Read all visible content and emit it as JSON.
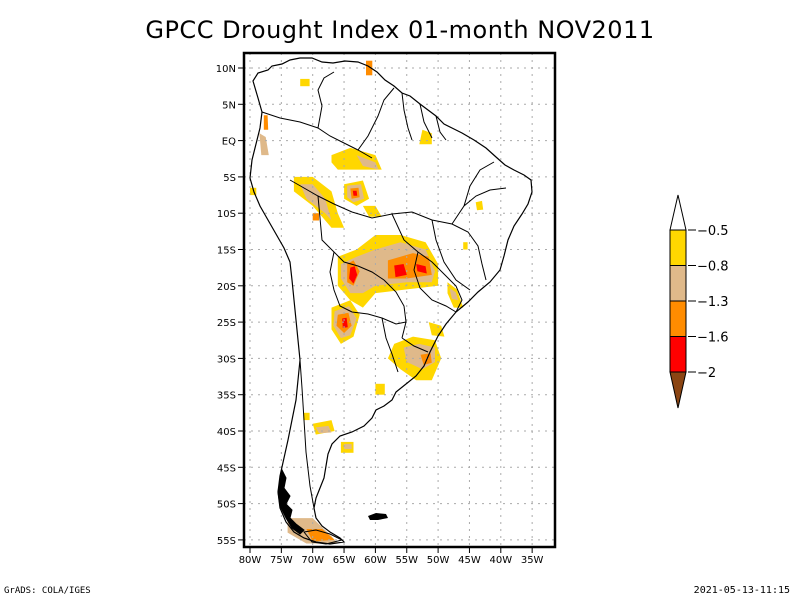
{
  "title": "GPCC Drought Index 01-month NOV2011",
  "footer": {
    "left": "GrADS: COLA/IGES",
    "right": "2021-05-13-11:15"
  },
  "map": {
    "region": "South America",
    "lon_range": [
      -81,
      -31.5
    ],
    "lat_range": [
      12,
      -56
    ],
    "lat_ticks": [
      {
        "value": 10,
        "label": "10N"
      },
      {
        "value": 5,
        "label": "5N"
      },
      {
        "value": 0,
        "label": "EQ"
      },
      {
        "value": -5,
        "label": "5S"
      },
      {
        "value": -10,
        "label": "10S"
      },
      {
        "value": -15,
        "label": "15S"
      },
      {
        "value": -20,
        "label": "20S"
      },
      {
        "value": -25,
        "label": "25S"
      },
      {
        "value": -30,
        "label": "30S"
      },
      {
        "value": -35,
        "label": "35S"
      },
      {
        "value": -40,
        "label": "40S"
      },
      {
        "value": -45,
        "label": "45S"
      },
      {
        "value": -50,
        "label": "50S"
      },
      {
        "value": -55,
        "label": "55S"
      }
    ],
    "lon_ticks": [
      {
        "value": -80,
        "label": "80W"
      },
      {
        "value": -75,
        "label": "75W"
      },
      {
        "value": -70,
        "label": "70W"
      },
      {
        "value": -65,
        "label": "65W"
      },
      {
        "value": -60,
        "label": "60W"
      },
      {
        "value": -55,
        "label": "55W"
      },
      {
        "value": -50,
        "label": "50W"
      },
      {
        "value": -45,
        "label": "45W"
      },
      {
        "value": -40,
        "label": "40W"
      },
      {
        "value": -35,
        "label": "35W"
      }
    ],
    "grid": "dotted"
  },
  "colorbar": {
    "levels": [
      "-0.5",
      "-0.8",
      "-1.3",
      "-1.6",
      "-2"
    ],
    "colors": {
      "above": "#ffffff",
      "b1": "#ffd700",
      "b2": "#dfb98a",
      "b3": "#ff8c00",
      "b4": "#ff0000",
      "below": "#8b4513"
    }
  },
  "drought_regions": [
    {
      "name": "western-amazon",
      "class": "b1",
      "poly": [
        [
          -67,
          -2
        ],
        [
          -64,
          -1
        ],
        [
          -60,
          -2
        ],
        [
          -59,
          -4
        ],
        [
          -63,
          -4
        ],
        [
          -66,
          -4
        ],
        [
          -67,
          -3
        ]
      ]
    },
    {
      "name": "western-amazon-inner",
      "class": "b2",
      "poly": [
        [
          -63,
          -2
        ],
        [
          -60,
          -3
        ],
        [
          -59.5,
          -4
        ],
        [
          -62,
          -3.5
        ]
      ]
    },
    {
      "name": "peru-east",
      "class": "b1",
      "poly": [
        [
          -73,
          -5
        ],
        [
          -70,
          -5
        ],
        [
          -67,
          -7
        ],
        [
          -66,
          -10
        ],
        [
          -65,
          -12
        ],
        [
          -67,
          -12
        ],
        [
          -70,
          -9
        ],
        [
          -73,
          -7
        ]
      ]
    },
    {
      "name": "peru-east-inner",
      "class": "b2",
      "poly": [
        [
          -72,
          -6
        ],
        [
          -70,
          -6
        ],
        [
          -68,
          -8
        ],
        [
          -67,
          -11
        ],
        [
          -68,
          -10
        ],
        [
          -71,
          -8
        ]
      ]
    },
    {
      "name": "peru-east-core",
      "class": "b3",
      "poly": [
        [
          -70,
          -10
        ],
        [
          -69,
          -10
        ],
        [
          -69,
          -11
        ],
        [
          -70,
          -11
        ]
      ]
    },
    {
      "name": "rondonia",
      "class": "b1",
      "poly": [
        [
          -65,
          -6
        ],
        [
          -62,
          -5.5
        ],
        [
          -61,
          -8
        ],
        [
          -63,
          -9
        ],
        [
          -65,
          -8
        ]
      ]
    },
    {
      "name": "rondonia-b2",
      "class": "b2",
      "poly": [
        [
          -64.5,
          -6.2
        ],
        [
          -62.3,
          -6
        ],
        [
          -61.8,
          -8
        ],
        [
          -63.5,
          -8.5
        ],
        [
          -64.5,
          -7.8
        ]
      ]
    },
    {
      "name": "rondonia-b3",
      "class": "b3",
      "poly": [
        [
          -64,
          -6.6
        ],
        [
          -62.7,
          -6.5
        ],
        [
          -62.5,
          -7.8
        ],
        [
          -63.8,
          -8
        ]
      ]
    },
    {
      "name": "rondonia-b4",
      "class": "b4",
      "poly": [
        [
          -63.6,
          -6.9
        ],
        [
          -63,
          -6.9
        ],
        [
          -62.9,
          -7.6
        ],
        [
          -63.5,
          -7.6
        ]
      ]
    },
    {
      "name": "bolivia-east",
      "class": "b1",
      "poly": [
        [
          -62,
          -9
        ],
        [
          -60,
          -9
        ],
        [
          -59,
          -10.5
        ],
        [
          -61,
          -10.5
        ]
      ]
    },
    {
      "name": "bolivia-central",
      "class": "b1",
      "poly": [
        [
          -66,
          -16
        ],
        [
          -63,
          -15
        ],
        [
          -60,
          -13
        ],
        [
          -56,
          -13
        ],
        [
          -52,
          -14
        ],
        [
          -50,
          -17
        ],
        [
          -50,
          -20
        ],
        [
          -55,
          -20.5
        ],
        [
          -60,
          -21
        ],
        [
          -62,
          -23
        ],
        [
          -64,
          -22
        ],
        [
          -66,
          -20
        ]
      ]
    },
    {
      "name": "bolivia-central-b2",
      "class": "b2",
      "poly": [
        [
          -65.5,
          -17
        ],
        [
          -63,
          -16
        ],
        [
          -60,
          -15
        ],
        [
          -56,
          -14
        ],
        [
          -52,
          -15
        ],
        [
          -50.5,
          -18
        ],
        [
          -51,
          -19.5
        ],
        [
          -55,
          -19.5
        ],
        [
          -60,
          -20
        ],
        [
          -62,
          -21
        ],
        [
          -64,
          -21
        ],
        [
          -65.5,
          -19
        ]
      ]
    },
    {
      "name": "bolivia-b3",
      "class": "b3",
      "poly": [
        [
          -64.5,
          -17
        ],
        [
          -63.5,
          -16.5
        ],
        [
          -62.5,
          -18
        ],
        [
          -63.5,
          -20
        ],
        [
          -64.5,
          -19.5
        ]
      ]
    },
    {
      "name": "bolivia-b4",
      "class": "b4",
      "poly": [
        [
          -64,
          -17.5
        ],
        [
          -63.3,
          -17.3
        ],
        [
          -62.9,
          -18.5
        ],
        [
          -63.5,
          -19.7
        ],
        [
          -64.2,
          -19
        ]
      ]
    },
    {
      "name": "matogrosso-b3",
      "class": "b3",
      "poly": [
        [
          -58,
          -16.5
        ],
        [
          -54,
          -15.5
        ],
        [
          -51.5,
          -16
        ],
        [
          -51,
          -18.5
        ],
        [
          -55,
          -19
        ],
        [
          -58,
          -19
        ]
      ]
    },
    {
      "name": "matogrosso-b4a",
      "class": "b4",
      "poly": [
        [
          -57,
          -17.2
        ],
        [
          -55.5,
          -17
        ],
        [
          -55,
          -18.5
        ],
        [
          -56.8,
          -18.8
        ]
      ]
    },
    {
      "name": "matogrosso-b4b",
      "class": "b4",
      "poly": [
        [
          -53.5,
          -17
        ],
        [
          -52,
          -17.3
        ],
        [
          -51.8,
          -18.3
        ],
        [
          -53.3,
          -18
        ]
      ]
    },
    {
      "name": "chaco",
      "class": "b1",
      "poly": [
        [
          -67,
          -23
        ],
        [
          -64,
          -22
        ],
        [
          -62.5,
          -24
        ],
        [
          -63.5,
          -27
        ],
        [
          -65.5,
          -28
        ],
        [
          -67,
          -26
        ]
      ]
    },
    {
      "name": "chaco-b2",
      "class": "b2",
      "poly": [
        [
          -66.5,
          -23.5
        ],
        [
          -64.2,
          -22.8
        ],
        [
          -63,
          -24.5
        ],
        [
          -64,
          -26.8
        ],
        [
          -65.5,
          -27.2
        ],
        [
          -66.7,
          -25.5
        ]
      ]
    },
    {
      "name": "chaco-b3",
      "class": "b3",
      "poly": [
        [
          -66,
          -24
        ],
        [
          -64.3,
          -23.7
        ],
        [
          -63.8,
          -25.5
        ],
        [
          -65,
          -26.5
        ],
        [
          -66.2,
          -25.5
        ]
      ]
    },
    {
      "name": "chaco-b4",
      "class": "b4",
      "poly": [
        [
          -65.3,
          -24.5
        ],
        [
          -64.6,
          -24.4
        ],
        [
          -64.4,
          -25.7
        ],
        [
          -65.2,
          -25.8
        ]
      ]
    },
    {
      "name": "rio-grande-do-sul",
      "class": "b1",
      "poly": [
        [
          -57,
          -28
        ],
        [
          -54,
          -27
        ],
        [
          -50.5,
          -27.5
        ],
        [
          -49.5,
          -30
        ],
        [
          -51,
          -33
        ],
        [
          -53.5,
          -33
        ],
        [
          -56,
          -31.5
        ],
        [
          -58,
          -30
        ]
      ]
    },
    {
      "name": "rio-grande-do-sul-b2",
      "class": "b2",
      "poly": [
        [
          -55.5,
          -28.5
        ],
        [
          -53,
          -28
        ],
        [
          -50.5,
          -28.5
        ],
        [
          -50.5,
          -30.5
        ],
        [
          -52.5,
          -31.5
        ],
        [
          -55,
          -30.5
        ]
      ]
    },
    {
      "name": "rio-grande-do-sul-b3",
      "class": "b3",
      "poly": [
        [
          -52.8,
          -29.5
        ],
        [
          -51.2,
          -29.3
        ],
        [
          -51,
          -30.6
        ],
        [
          -52.3,
          -30.9
        ]
      ]
    },
    {
      "name": "santa-catarina",
      "class": "b1",
      "poly": [
        [
          -51.5,
          -25
        ],
        [
          -49.5,
          -25.5
        ],
        [
          -49,
          -27
        ],
        [
          -51,
          -26.8
        ]
      ]
    },
    {
      "name": "sao-paulo",
      "class": "b1",
      "poly": [
        [
          -48.5,
          -19.5
        ],
        [
          -47,
          -20.5
        ],
        [
          -46,
          -23
        ],
        [
          -47.5,
          -23
        ],
        [
          -48.5,
          -21
        ]
      ]
    },
    {
      "name": "sao-paulo-b2",
      "class": "b2",
      "poly": [
        [
          -48.2,
          -20.3
        ],
        [
          -47.2,
          -20.9
        ],
        [
          -46.8,
          -22
        ],
        [
          -47.8,
          -21.8
        ]
      ]
    },
    {
      "name": "colombia-andes",
      "class": "b2",
      "poly": [
        [
          -78.5,
          1
        ],
        [
          -77.5,
          0.5
        ],
        [
          -77,
          -2
        ],
        [
          -78.2,
          -2
        ]
      ]
    },
    {
      "name": "colombia-andes-b3",
      "class": "b3",
      "poly": [
        [
          -77.8,
          3.5
        ],
        [
          -77.2,
          3.5
        ],
        [
          -77.1,
          1.5
        ],
        [
          -77.8,
          1.5
        ]
      ]
    },
    {
      "name": "patagonia-south",
      "class": "b2",
      "poly": [
        [
          -74,
          -52
        ],
        [
          -70,
          -52
        ],
        [
          -67,
          -54.5
        ],
        [
          -66,
          -55.5
        ],
        [
          -71,
          -55.5
        ],
        [
          -74,
          -54
        ]
      ]
    },
    {
      "name": "patagonia-south-b3",
      "class": "b3",
      "poly": [
        [
          -71,
          -53.5
        ],
        [
          -68.5,
          -53.5
        ],
        [
          -66.5,
          -55
        ],
        [
          -70,
          -55.2
        ]
      ]
    },
    {
      "name": "patagonia-center",
      "class": "b1",
      "poly": [
        [
          -70,
          -39
        ],
        [
          -67,
          -38.5
        ],
        [
          -66.5,
          -40
        ],
        [
          -69.5,
          -40.5
        ]
      ]
    },
    {
      "name": "patagonia-center-b2",
      "class": "b2",
      "poly": [
        [
          -69.5,
          -39.5
        ],
        [
          -67.5,
          -39.3
        ],
        [
          -67,
          -40.2
        ],
        [
          -69,
          -40.3
        ]
      ]
    },
    {
      "name": "patagonia-east",
      "class": "b1",
      "poly": [
        [
          -65.5,
          -41.5
        ],
        [
          -63.5,
          -41.5
        ],
        [
          -63.5,
          -43
        ],
        [
          -65.5,
          -43
        ]
      ]
    },
    {
      "name": "patagonia-east-b2",
      "class": "b2",
      "poly": [
        [
          -65,
          -41.8
        ],
        [
          -63.8,
          -41.8
        ],
        [
          -63.8,
          -42.5
        ],
        [
          -65,
          -42.5
        ]
      ]
    },
    {
      "name": "bahia-patch",
      "class": "b1",
      "poly": [
        [
          -44,
          -8.5
        ],
        [
          -43,
          -8.3
        ],
        [
          -42.8,
          -9.5
        ],
        [
          -43.8,
          -9.6
        ]
      ]
    },
    {
      "name": "goias-patch",
      "class": "b1",
      "poly": [
        [
          -46,
          -14
        ],
        [
          -45.3,
          -14
        ],
        [
          -45.3,
          -15
        ],
        [
          -46,
          -15
        ]
      ]
    },
    {
      "name": "para-coast",
      "class": "b1",
      "poly": [
        [
          -53,
          -0.5
        ],
        [
          -51,
          -0.5
        ],
        [
          -51,
          1
        ],
        [
          -52.5,
          1.5
        ]
      ]
    },
    {
      "name": "guyana-coast",
      "class": "b3",
      "poly": [
        [
          -61.5,
          9
        ],
        [
          -60.5,
          9
        ],
        [
          -60.5,
          11
        ],
        [
          -61.5,
          11
        ]
      ]
    },
    {
      "name": "venezuela-nw",
      "class": "b1",
      "poly": [
        [
          -72,
          7.5
        ],
        [
          -70.5,
          7.5
        ],
        [
          -70.5,
          8.5
        ],
        [
          -72,
          8.5
        ]
      ]
    },
    {
      "name": "uruguay-coast",
      "class": "b1",
      "poly": [
        [
          -60,
          -33.5
        ],
        [
          -58.5,
          -33.5
        ],
        [
          -58.5,
          -35
        ],
        [
          -60,
          -35
        ]
      ]
    },
    {
      "name": "chile-central",
      "class": "b1",
      "poly": [
        [
          -71.5,
          -37.5
        ],
        [
          -70.5,
          -37.5
        ],
        [
          -70.5,
          -38.5
        ],
        [
          -71.5,
          -38.5
        ]
      ]
    },
    {
      "name": "peru-north-patch",
      "class": "b1",
      "poly": [
        [
          -80,
          -6.5
        ],
        [
          -79,
          -6.5
        ],
        [
          -79,
          -7.5
        ],
        [
          -80,
          -7.5
        ]
      ]
    }
  ]
}
